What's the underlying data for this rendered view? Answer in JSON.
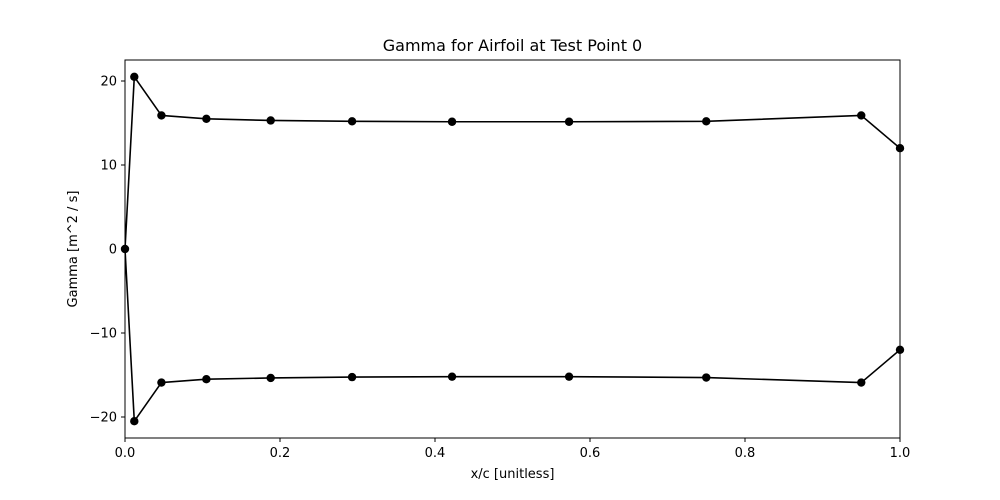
{
  "chart_data": {
    "type": "line",
    "title": "Gamma for Airfoil at Test Point 0",
    "xlabel": "x/c [unitless]",
    "ylabel": "Gamma [m^2 / s]",
    "xlim": [
      0.0,
      1.0
    ],
    "ylim": [
      -22.5,
      22.5
    ],
    "grid": false,
    "marker": "circle",
    "line_color": "#000000",
    "x_ticks": [
      0.0,
      0.2,
      0.4,
      0.6,
      0.8,
      1.0
    ],
    "x_tick_labels": [
      "0.0",
      "0.2",
      "0.4",
      "0.6",
      "0.8",
      "1.0"
    ],
    "y_ticks": [
      -20,
      -10,
      0,
      10,
      20
    ],
    "y_tick_labels": [
      "−20",
      "−10",
      "0",
      "10",
      "20"
    ],
    "x": [
      1.0,
      0.95,
      0.75,
      0.573,
      0.422,
      0.293,
      0.188,
      0.105,
      0.047,
      0.012,
      0.0,
      0.012,
      0.047,
      0.105,
      0.188,
      0.293,
      0.422,
      0.573,
      0.75,
      0.95,
      1.0
    ],
    "y": [
      -12.0,
      -15.9,
      -15.3,
      -15.2,
      -15.2,
      -15.25,
      -15.35,
      -15.5,
      -15.9,
      -20.5,
      0.0,
      20.5,
      15.9,
      15.5,
      15.3,
      15.2,
      15.15,
      15.15,
      15.2,
      15.9,
      12.0
    ]
  }
}
